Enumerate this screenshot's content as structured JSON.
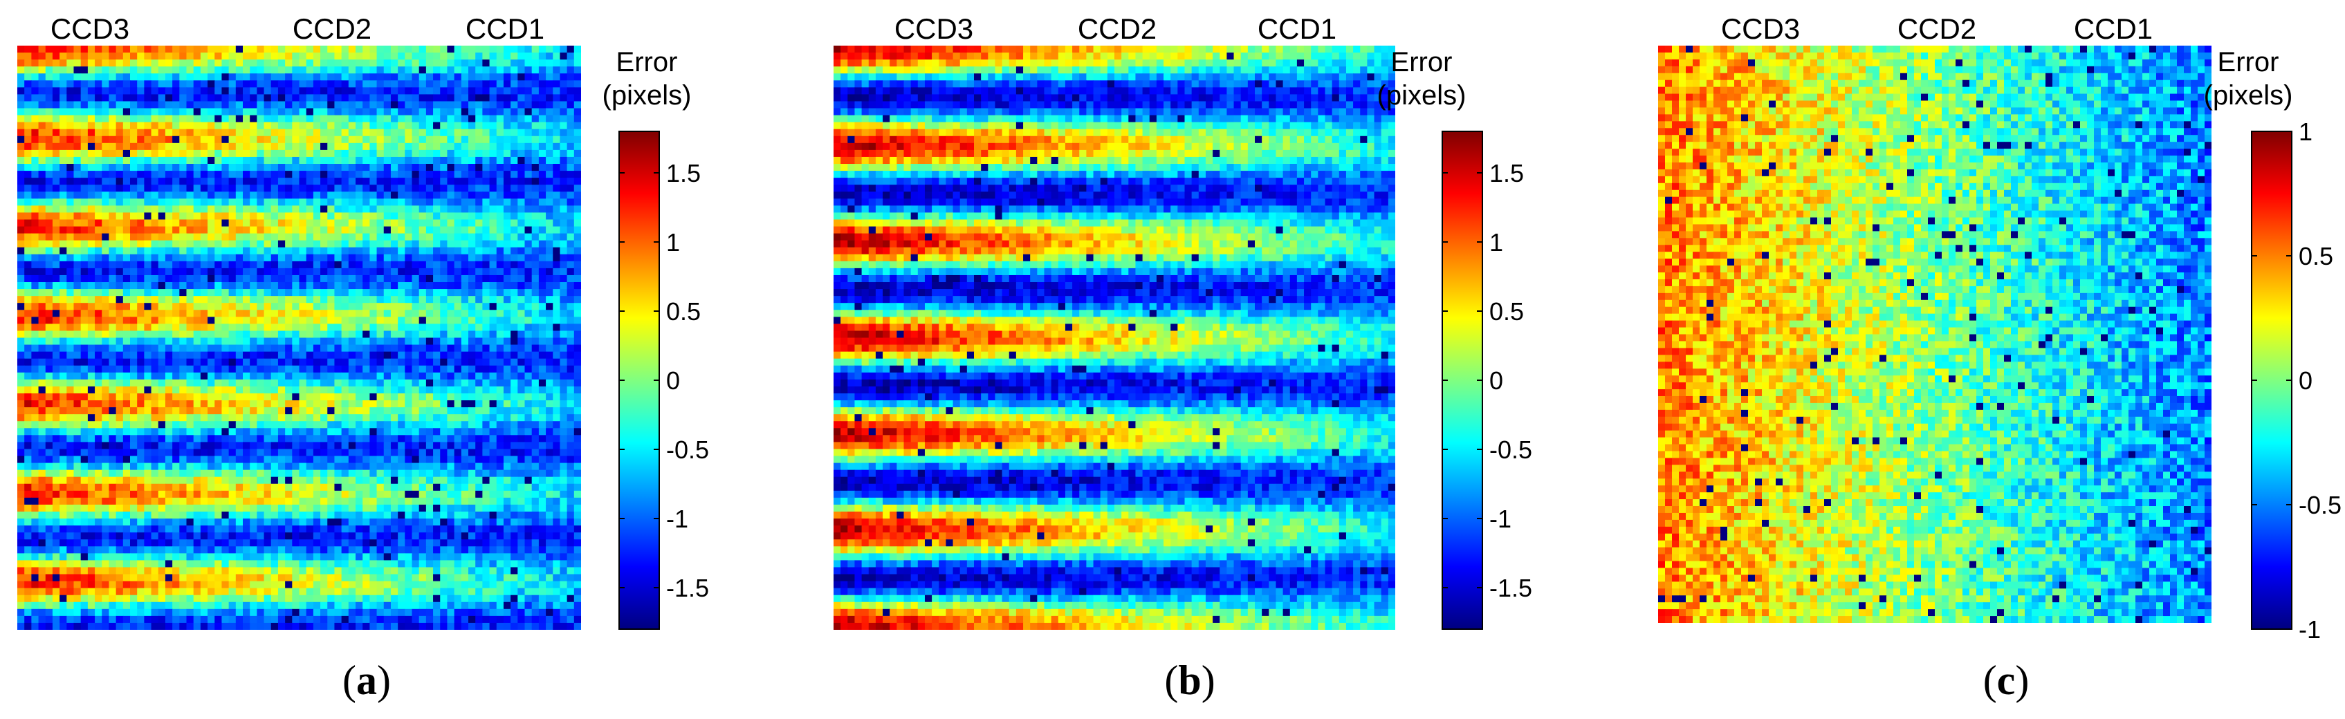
{
  "chart_data": [
    {
      "type": "heatmap",
      "panel_label": "a",
      "column_labels": [
        "CCD3",
        "CCD2",
        "CCD1"
      ],
      "colorbar_title": [
        "Error",
        "(pixels)"
      ],
      "colorbar_range": [
        -1.8,
        1.8
      ],
      "colorbar_ticks": [
        -1.5,
        -1,
        -0.5,
        0,
        0.5,
        1,
        1.5
      ],
      "colorbar_tick_labels": [
        "-1.5",
        "-1",
        "-0.5",
        "0",
        "0.5",
        "1",
        "1.5"
      ],
      "pattern": "horizontal sinusoidal stripes, about 6.5 periods top to bottom, amplitude fading from ~1.3 px at the left (CCD3) to ~-1 px bias at the right (CCD1)",
      "stripe_periods": 6.5,
      "left_amplitude": 1.3,
      "right_bias": -0.9,
      "noise": 0.35
    },
    {
      "type": "heatmap",
      "panel_label": "b",
      "column_labels": [
        "CCD3",
        "CCD2",
        "CCD1"
      ],
      "colorbar_title": [
        "Error",
        "(pixels)"
      ],
      "colorbar_range": [
        -1.8,
        1.8
      ],
      "colorbar_ticks": [
        -1.5,
        -1,
        -0.5,
        0,
        0.5,
        1,
        1.5
      ],
      "colorbar_tick_labels": [
        "-1.5",
        "-1",
        "-0.5",
        "0",
        "0.5",
        "1",
        "1.5"
      ],
      "pattern": "horizontal sinusoidal stripes, about 6 periods, strong amplitude ~1.6 px at the left decreasing to the right",
      "stripe_periods": 6,
      "left_amplitude": 1.6,
      "right_bias": -0.8,
      "noise": 0.3
    },
    {
      "type": "heatmap",
      "panel_label": "c",
      "column_labels": [
        "CCD3",
        "CCD2",
        "CCD1"
      ],
      "colorbar_title": [
        "Error",
        "(pixels)"
      ],
      "colorbar_range": [
        -1,
        1
      ],
      "colorbar_ticks": [
        -1,
        -0.5,
        0,
        0.5,
        1
      ],
      "colorbar_tick_labels": [
        "-1",
        "-0.5",
        "0",
        "0.5",
        "1"
      ],
      "pattern": "no stripes; smooth gradient from ~+0.5 px at the left (CCD3) to ~-0.5 px at the right (CCD1) with speckle noise",
      "stripe_periods": 0,
      "left_value": 0.5,
      "right_value": -0.5,
      "noise": 0.25
    }
  ]
}
